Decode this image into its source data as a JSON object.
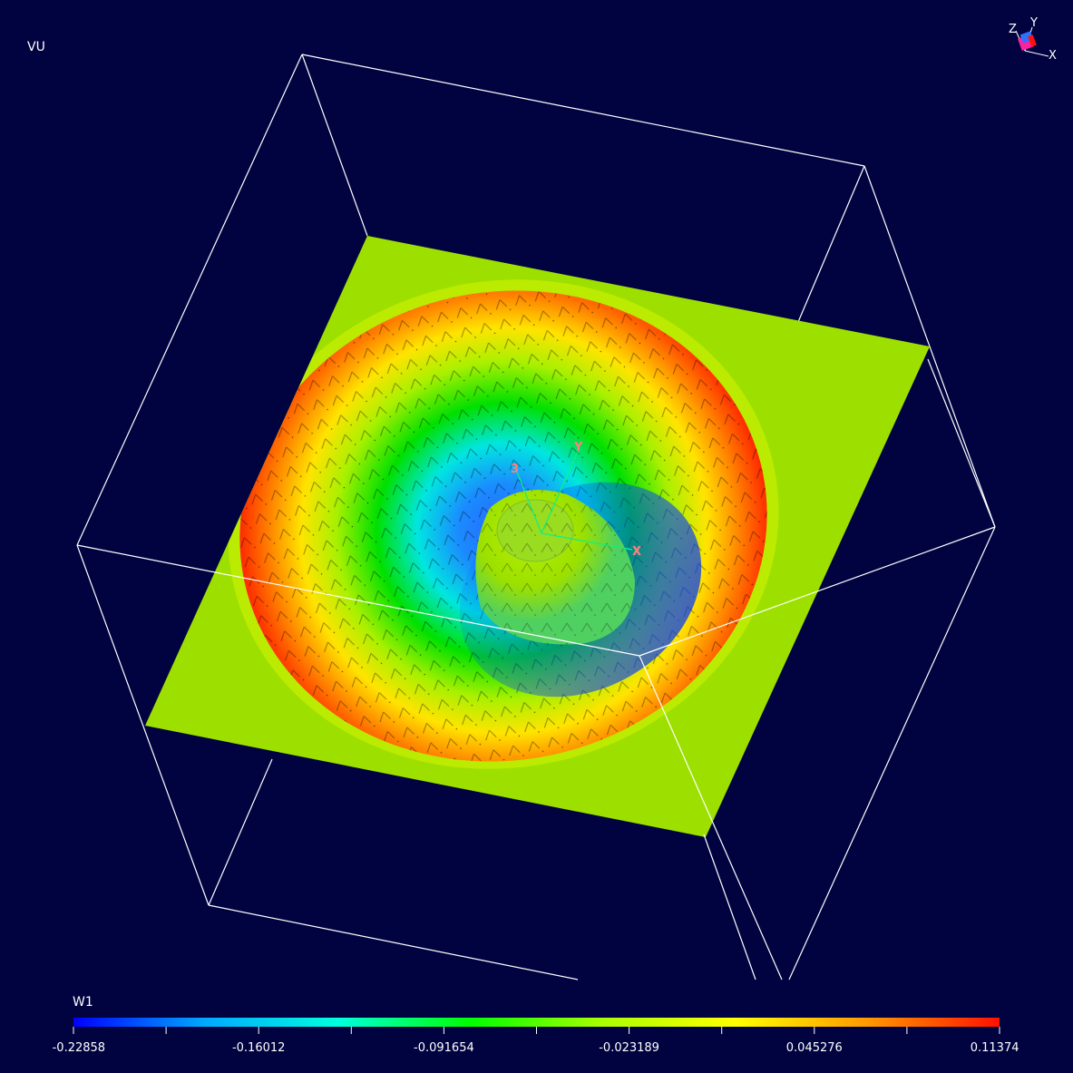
{
  "viewport": {
    "title": "VU"
  },
  "legend": {
    "title": "W1",
    "ticks": [
      "-0.22858",
      "-0.16012",
      "-0.091654",
      "-0.023189",
      "0.045276",
      "0.11374"
    ],
    "colormap": [
      "#0000ff",
      "#00aaff",
      "#00ffdd",
      "#00ff00",
      "#aaff00",
      "#ffff00",
      "#ff9900",
      "#ff1100"
    ]
  },
  "scene_axes": {
    "x_label": "X",
    "y_label": "Y",
    "z_label": "3"
  },
  "orientation_triad": {
    "x_label": "X",
    "y_label": "Y",
    "z_label": "Z"
  },
  "colors": {
    "background": "#000340",
    "plane": "#9de000",
    "box_lines": "#ffffff"
  }
}
